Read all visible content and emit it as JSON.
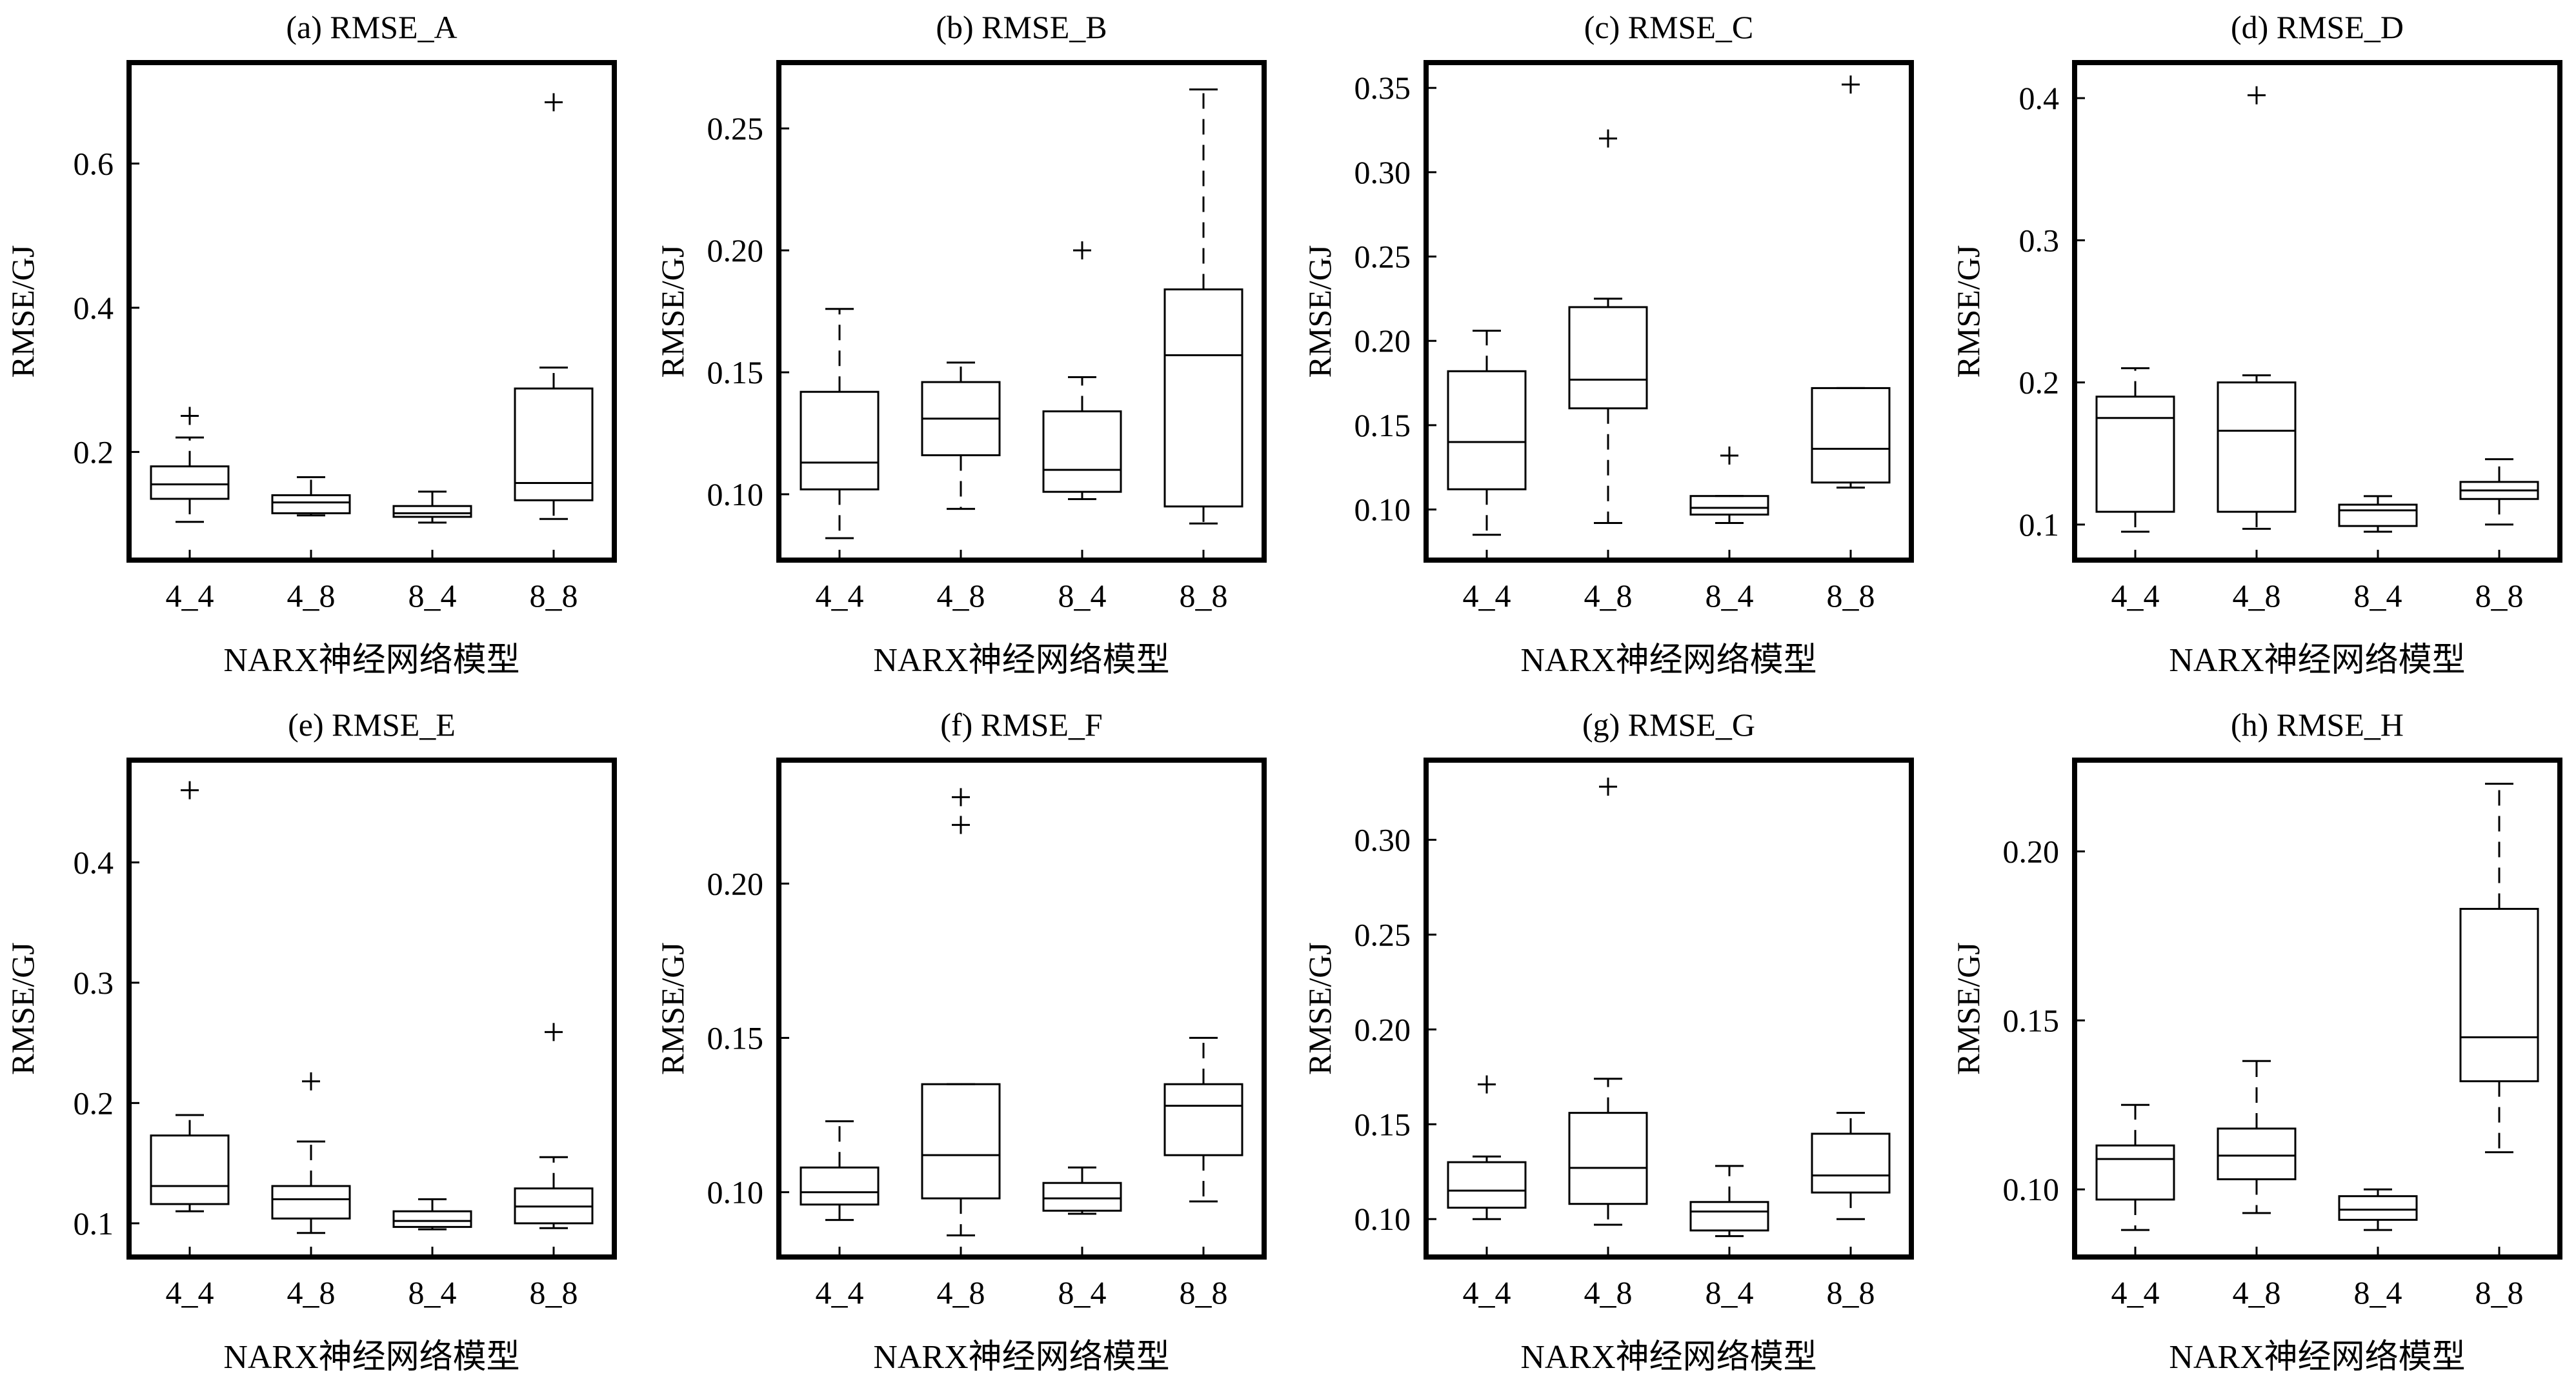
{
  "figure": {
    "xlabel": "NARX神经网络模型",
    "ylabel": "RMSE/GJ"
  },
  "chart_data": [
    {
      "type": "box",
      "title": "(a) RMSE_A",
      "xlabel": "NARX神经网络模型",
      "ylabel": "RMSE/GJ",
      "categories": [
        "4_4",
        "4_8",
        "8_4",
        "8_8"
      ],
      "ylim": [
        0.05,
        0.74
      ],
      "yticks": [
        0.2,
        0.4,
        0.6
      ],
      "ytick_labels": [
        "0.2",
        "0.4",
        "0.6"
      ],
      "boxes": [
        {
          "category": "4_4",
          "whisker_low": 0.103,
          "q1": 0.135,
          "median": 0.155,
          "q3": 0.18,
          "whisker_high": 0.22,
          "outliers": [
            0.25
          ]
        },
        {
          "category": "4_8",
          "whisker_low": 0.112,
          "q1": 0.115,
          "median": 0.13,
          "q3": 0.14,
          "whisker_high": 0.165,
          "outliers": []
        },
        {
          "category": "8_4",
          "whisker_low": 0.102,
          "q1": 0.11,
          "median": 0.115,
          "q3": 0.125,
          "whisker_high": 0.145,
          "outliers": []
        },
        {
          "category": "8_8",
          "whisker_low": 0.107,
          "q1": 0.133,
          "median": 0.157,
          "q3": 0.288,
          "whisker_high": 0.317,
          "outliers": [
            0.685
          ]
        }
      ]
    },
    {
      "type": "box",
      "title": "(b) RMSE_B",
      "xlabel": "NARX神经网络模型",
      "ylabel": "RMSE/GJ",
      "categories": [
        "4_4",
        "4_8",
        "8_4",
        "8_8"
      ],
      "ylim": [
        0.073,
        0.277
      ],
      "yticks": [
        0.1,
        0.15,
        0.2,
        0.25
      ],
      "ytick_labels": [
        "0.10",
        "0.15",
        "0.20",
        "0.25"
      ],
      "boxes": [
        {
          "category": "4_4",
          "whisker_low": 0.082,
          "q1": 0.102,
          "median": 0.113,
          "q3": 0.142,
          "whisker_high": 0.176,
          "outliers": []
        },
        {
          "category": "4_8",
          "whisker_low": 0.094,
          "q1": 0.116,
          "median": 0.131,
          "q3": 0.146,
          "whisker_high": 0.154,
          "outliers": []
        },
        {
          "category": "8_4",
          "whisker_low": 0.098,
          "q1": 0.101,
          "median": 0.11,
          "q3": 0.134,
          "whisker_high": 0.148,
          "outliers": [
            0.2
          ]
        },
        {
          "category": "8_8",
          "whisker_low": 0.088,
          "q1": 0.095,
          "median": 0.157,
          "q3": 0.184,
          "whisker_high": 0.266,
          "outliers": []
        }
      ]
    },
    {
      "type": "box",
      "title": "(c) RMSE_C",
      "xlabel": "NARX神经网络模型",
      "ylabel": "RMSE/GJ",
      "categories": [
        "4_4",
        "4_8",
        "8_4",
        "8_8"
      ],
      "ylim": [
        0.07,
        0.365
      ],
      "yticks": [
        0.1,
        0.15,
        0.2,
        0.25,
        0.3,
        0.35
      ],
      "ytick_labels": [
        "0.10",
        "0.15",
        "0.20",
        "0.25",
        "0.30",
        "0.35"
      ],
      "boxes": [
        {
          "category": "4_4",
          "whisker_low": 0.085,
          "q1": 0.112,
          "median": 0.14,
          "q3": 0.182,
          "whisker_high": 0.206,
          "outliers": []
        },
        {
          "category": "4_8",
          "whisker_low": 0.092,
          "q1": 0.16,
          "median": 0.177,
          "q3": 0.22,
          "whisker_high": 0.225,
          "outliers": [
            0.32
          ]
        },
        {
          "category": "8_4",
          "whisker_low": 0.092,
          "q1": 0.097,
          "median": 0.101,
          "q3": 0.108,
          "whisker_high": 0.108,
          "outliers": [
            0.132
          ]
        },
        {
          "category": "8_8",
          "whisker_low": 0.113,
          "q1": 0.116,
          "median": 0.136,
          "q3": 0.172,
          "whisker_high": 0.172,
          "outliers": [
            0.352
          ]
        }
      ]
    },
    {
      "type": "box",
      "title": "(d) RMSE_D",
      "xlabel": "NARX神经网络模型",
      "ylabel": "RMSE/GJ",
      "categories": [
        "4_4",
        "4_8",
        "8_4",
        "8_8"
      ],
      "ylim": [
        0.075,
        0.425
      ],
      "yticks": [
        0.1,
        0.2,
        0.3,
        0.4
      ],
      "ytick_labels": [
        "0.1",
        "0.2",
        "0.3",
        "0.4"
      ],
      "boxes": [
        {
          "category": "4_4",
          "whisker_low": 0.095,
          "q1": 0.109,
          "median": 0.175,
          "q3": 0.19,
          "whisker_high": 0.21,
          "outliers": []
        },
        {
          "category": "4_8",
          "whisker_low": 0.097,
          "q1": 0.109,
          "median": 0.166,
          "q3": 0.2,
          "whisker_high": 0.205,
          "outliers": [
            0.402
          ]
        },
        {
          "category": "8_4",
          "whisker_low": 0.095,
          "q1": 0.099,
          "median": 0.11,
          "q3": 0.114,
          "whisker_high": 0.12,
          "outliers": []
        },
        {
          "category": "8_8",
          "whisker_low": 0.1,
          "q1": 0.118,
          "median": 0.124,
          "q3": 0.13,
          "whisker_high": 0.146,
          "outliers": []
        }
      ]
    },
    {
      "type": "box",
      "title": "(e) RMSE_E",
      "xlabel": "NARX神经网络模型",
      "ylabel": "RMSE/GJ",
      "categories": [
        "4_4",
        "4_8",
        "8_4",
        "8_8"
      ],
      "ylim": [
        0.072,
        0.485
      ],
      "yticks": [
        0.1,
        0.2,
        0.3,
        0.4
      ],
      "ytick_labels": [
        "0.1",
        "0.2",
        "0.3",
        "0.4"
      ],
      "boxes": [
        {
          "category": "4_4",
          "whisker_low": 0.11,
          "q1": 0.116,
          "median": 0.131,
          "q3": 0.173,
          "whisker_high": 0.19,
          "outliers": [
            0.46
          ]
        },
        {
          "category": "4_8",
          "whisker_low": 0.092,
          "q1": 0.104,
          "median": 0.12,
          "q3": 0.131,
          "whisker_high": 0.168,
          "outliers": [
            0.218
          ]
        },
        {
          "category": "8_4",
          "whisker_low": 0.095,
          "q1": 0.097,
          "median": 0.102,
          "q3": 0.11,
          "whisker_high": 0.12,
          "outliers": []
        },
        {
          "category": "8_8",
          "whisker_low": 0.096,
          "q1": 0.1,
          "median": 0.114,
          "q3": 0.129,
          "whisker_high": 0.155,
          "outliers": [
            0.259
          ]
        }
      ]
    },
    {
      "type": "box",
      "title": "(f) RMSE_F",
      "xlabel": "NARX神经网络模型",
      "ylabel": "RMSE/GJ",
      "categories": [
        "4_4",
        "4_8",
        "8_4",
        "8_8"
      ],
      "ylim": [
        0.079,
        0.24
      ],
      "yticks": [
        0.1,
        0.15,
        0.2
      ],
      "ytick_labels": [
        "0.10",
        "0.15",
        "0.20"
      ],
      "boxes": [
        {
          "category": "4_4",
          "whisker_low": 0.091,
          "q1": 0.096,
          "median": 0.1,
          "q3": 0.108,
          "whisker_high": 0.123,
          "outliers": []
        },
        {
          "category": "4_8",
          "whisker_low": 0.086,
          "q1": 0.098,
          "median": 0.112,
          "q3": 0.135,
          "whisker_high": 0.135,
          "outliers": [
            0.219,
            0.228
          ]
        },
        {
          "category": "8_4",
          "whisker_low": 0.093,
          "q1": 0.094,
          "median": 0.098,
          "q3": 0.103,
          "whisker_high": 0.108,
          "outliers": []
        },
        {
          "category": "8_8",
          "whisker_low": 0.097,
          "q1": 0.112,
          "median": 0.128,
          "q3": 0.135,
          "whisker_high": 0.15,
          "outliers": []
        }
      ]
    },
    {
      "type": "box",
      "title": "(g) RMSE_G",
      "xlabel": "NARX神经网络模型",
      "ylabel": "RMSE/GJ",
      "categories": [
        "4_4",
        "4_8",
        "8_4",
        "8_8"
      ],
      "ylim": [
        0.08,
        0.342
      ],
      "yticks": [
        0.1,
        0.15,
        0.2,
        0.25,
        0.3
      ],
      "ytick_labels": [
        "0.10",
        "0.15",
        "0.20",
        "0.25",
        "0.30"
      ],
      "boxes": [
        {
          "category": "4_4",
          "whisker_low": 0.1,
          "q1": 0.106,
          "median": 0.115,
          "q3": 0.13,
          "whisker_high": 0.133,
          "outliers": [
            0.171
          ]
        },
        {
          "category": "4_8",
          "whisker_low": 0.097,
          "q1": 0.108,
          "median": 0.127,
          "q3": 0.156,
          "whisker_high": 0.174,
          "outliers": [
            0.328
          ]
        },
        {
          "category": "8_4",
          "whisker_low": 0.091,
          "q1": 0.094,
          "median": 0.104,
          "q3": 0.109,
          "whisker_high": 0.128,
          "outliers": []
        },
        {
          "category": "8_8",
          "whisker_low": 0.1,
          "q1": 0.114,
          "median": 0.123,
          "q3": 0.145,
          "whisker_high": 0.156,
          "outliers": []
        }
      ]
    },
    {
      "type": "box",
      "title": "(h) RMSE_H",
      "xlabel": "NARX神经网络模型",
      "ylabel": "RMSE/GJ",
      "categories": [
        "4_4",
        "4_8",
        "8_4",
        "8_8"
      ],
      "ylim": [
        0.08,
        0.227
      ],
      "yticks": [
        0.1,
        0.15,
        0.2
      ],
      "ytick_labels": [
        "0.10",
        "0.15",
        "0.20"
      ],
      "boxes": [
        {
          "category": "4_4",
          "whisker_low": 0.088,
          "q1": 0.097,
          "median": 0.109,
          "q3": 0.113,
          "whisker_high": 0.125,
          "outliers": []
        },
        {
          "category": "4_8",
          "whisker_low": 0.093,
          "q1": 0.103,
          "median": 0.11,
          "q3": 0.118,
          "whisker_high": 0.138,
          "outliers": []
        },
        {
          "category": "8_4",
          "whisker_low": 0.088,
          "q1": 0.091,
          "median": 0.094,
          "q3": 0.098,
          "whisker_high": 0.1,
          "outliers": []
        },
        {
          "category": "8_8",
          "whisker_low": 0.111,
          "q1": 0.132,
          "median": 0.145,
          "q3": 0.183,
          "whisker_high": 0.22,
          "outliers": []
        }
      ]
    }
  ]
}
